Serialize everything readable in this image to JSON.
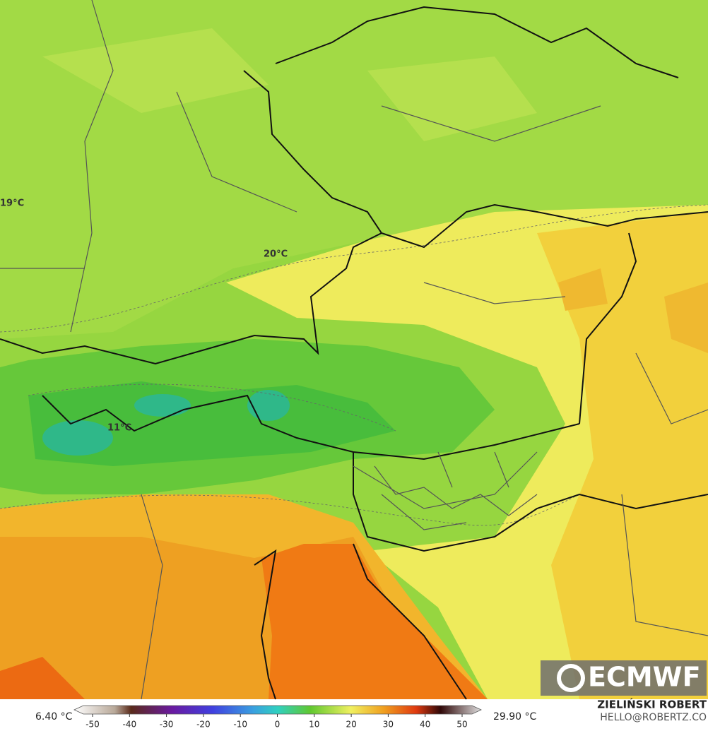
{
  "map": {
    "labels": [
      "19°C",
      "20°C",
      "11°C"
    ]
  },
  "logo": "ECMWF",
  "credits": {
    "author": "ZIELIŃSKI ROBERT",
    "email": "HELLO@ROBERTZ.CO"
  },
  "colorbar": {
    "min_label": "6.40 °C",
    "max_label": "29.90 °C",
    "ticks": [
      -50,
      -40,
      -30,
      -20,
      -10,
      0,
      10,
      20,
      30,
      40,
      50
    ]
  }
}
